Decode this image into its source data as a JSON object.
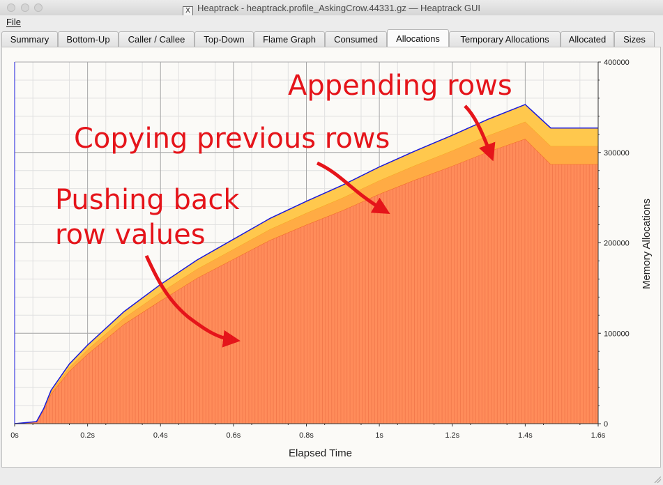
{
  "window": {
    "title": "Heaptrack - heaptrack.profile_AskingCrow.44331.gz — Heaptrack GUI",
    "title_icon": "x11-icon"
  },
  "menu": {
    "items": [
      "File"
    ]
  },
  "tabs": [
    {
      "label": "Summary"
    },
    {
      "label": "Bottom-Up"
    },
    {
      "label": "Caller / Callee"
    },
    {
      "label": "Top-Down"
    },
    {
      "label": "Flame Graph"
    },
    {
      "label": "Consumed"
    },
    {
      "label": "Allocations",
      "active": true
    },
    {
      "label": "Temporary Allocations"
    },
    {
      "label": "Allocated"
    },
    {
      "label": "Sizes"
    }
  ],
  "chart_data": {
    "type": "area",
    "stacked": true,
    "xlabel": "Elapsed Time",
    "ylabel": "Memory Allocations",
    "x_ticks": [
      "0s",
      "0.2s",
      "0.4s",
      "0.6s",
      "0.8s",
      "1s",
      "1.2s",
      "1.4s",
      "1.6s"
    ],
    "y_ticks": [
      "0",
      "100000",
      "200000",
      "300000",
      "400000"
    ],
    "xlim": [
      0,
      1.6
    ],
    "ylim": [
      0,
      400000
    ],
    "y_axis_side": "right",
    "grid": true,
    "x": [
      0,
      0.06,
      0.08,
      0.1,
      0.15,
      0.2,
      0.3,
      0.4,
      0.5,
      0.6,
      0.7,
      0.8,
      0.9,
      1.0,
      1.1,
      1.2,
      1.3,
      1.4,
      1.47,
      1.6
    ],
    "series": [
      {
        "name": "",
        "color": "#ff8c5a",
        "values": [
          0,
          2000,
          15000,
          33000,
          58000,
          77000,
          110000,
          136000,
          161000,
          182000,
          203000,
          220000,
          236000,
          254000,
          270000,
          285000,
          301000,
          315000,
          287000,
          287000
        ],
        "values_note": ""
      },
      {
        "name": "",
        "color": "#ffab44",
        "values": [
          0,
          200,
          1500,
          2500,
          4000,
          5000,
          7000,
          9000,
          10000,
          11000,
          12000,
          13000,
          14000,
          15000,
          16000,
          17000,
          18000,
          19000,
          20000,
          20000
        ]
      },
      {
        "name": "",
        "color": "#ffc84d",
        "values": [
          0,
          100,
          500,
          1500,
          4000,
          5000,
          7000,
          9000,
          10000,
          11000,
          12000,
          13000,
          14000,
          15000,
          16000,
          17000,
          18000,
          19000,
          20000,
          20000
        ]
      }
    ],
    "annotations": [
      {
        "text": "Appending rows",
        "color": "#e5141a"
      },
      {
        "text": "Copying previous rows",
        "color": "#e5141a"
      },
      {
        "text": "Pushing back",
        "color": "#e5141a"
      },
      {
        "text": "row values",
        "color": "#e5141a"
      }
    ]
  }
}
